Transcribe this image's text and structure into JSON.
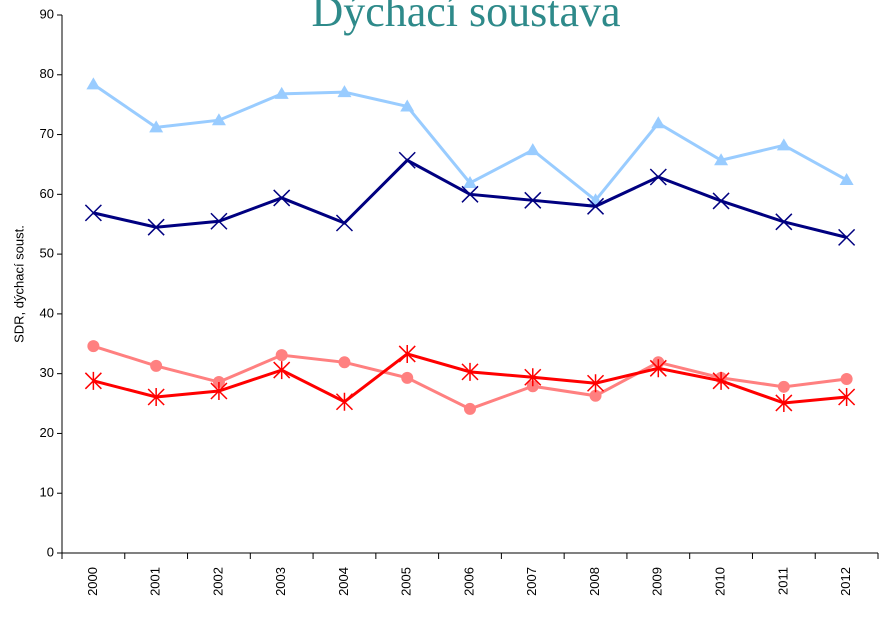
{
  "chart_data": {
    "type": "line",
    "title": "Dýchací soustava",
    "y_label": "SDR, dýchací soust.",
    "categories": [
      "2000",
      "2001",
      "2002",
      "2003",
      "2004",
      "2005",
      "2006",
      "2007",
      "2008",
      "2009",
      "2010",
      "2011",
      "2012"
    ],
    "series": [
      {
        "color": "#99ccff",
        "marker": "triangle",
        "values": [
          78.4,
          71.2,
          72.4,
          76.8,
          77.1,
          74.7,
          61.9,
          67.4,
          59.0,
          71.9,
          65.7,
          68.2,
          62.4
        ]
      },
      {
        "color": "#000080",
        "marker": "x",
        "values": [
          56.9,
          54.5,
          55.5,
          59.4,
          55.2,
          65.7,
          60.0,
          59.0,
          58.0,
          62.9,
          58.9,
          55.4,
          52.8
        ]
      },
      {
        "color": "#ff8080",
        "marker": "circle",
        "values": [
          34.6,
          31.3,
          28.6,
          33.1,
          31.9,
          29.3,
          24.1,
          27.9,
          26.3,
          31.9,
          29.3,
          27.8,
          29.1
        ]
      },
      {
        "color": "#ff0000",
        "marker": "asterisk",
        "values": [
          28.8,
          26.1,
          27.1,
          30.6,
          25.3,
          33.3,
          30.3,
          29.4,
          28.4,
          30.9,
          28.8,
          25.1,
          26.1
        ]
      }
    ],
    "ylim": [
      0,
      90
    ],
    "yticks": [
      0,
      10,
      20,
      30,
      40,
      50,
      60,
      70,
      80,
      90
    ]
  }
}
